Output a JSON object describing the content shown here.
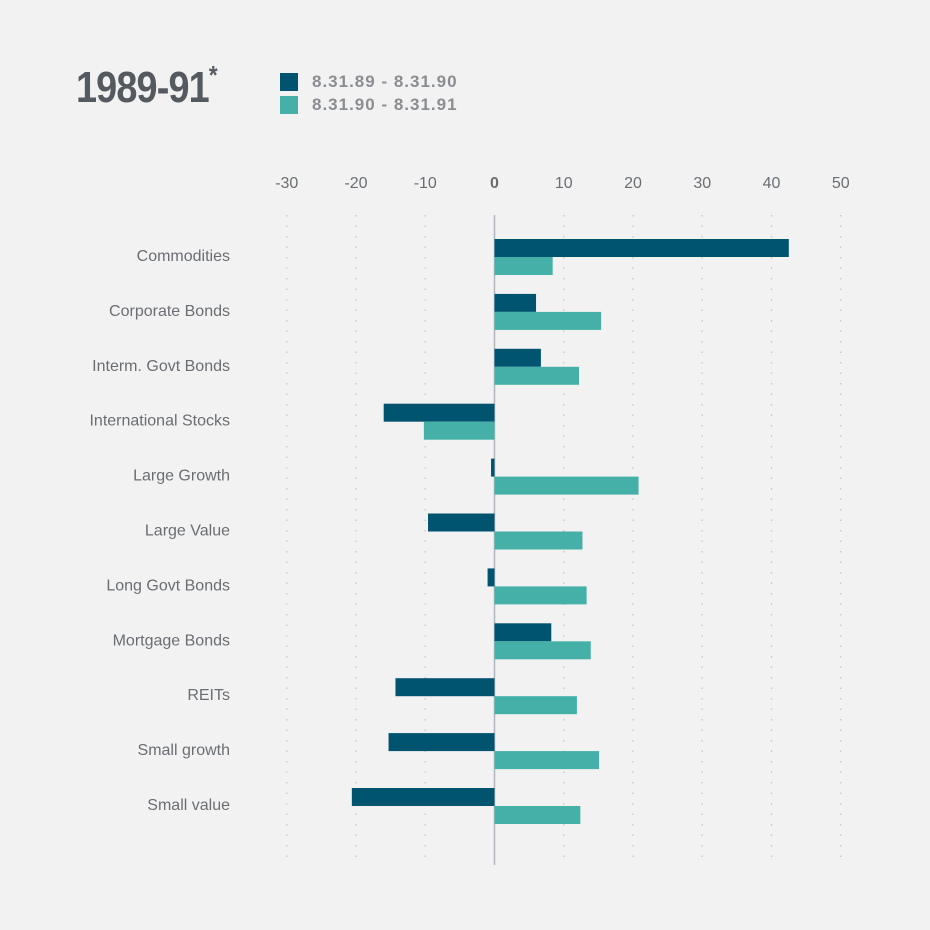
{
  "title": "1989-91",
  "title_mark": "*",
  "colors": {
    "series1": "#005470",
    "series2": "#44b0a8",
    "grid": "#c2c2c2",
    "zero": "#b0b6bc",
    "text": "#6a6e73"
  },
  "chart_data": {
    "type": "bar",
    "orientation": "horizontal",
    "title": "1989-91*",
    "categories": [
      "Commodities",
      "Corporate Bonds",
      "Interm. Govt Bonds",
      "International Stocks",
      "Large Growth",
      "Large Value",
      "Long Govt Bonds",
      "Mortgage Bonds",
      "REITs",
      "Small growth",
      "Small value"
    ],
    "series": [
      {
        "name": "8.31.89 - 8.31.90",
        "color": "#005470",
        "values": [
          42.5,
          6.0,
          6.7,
          -16.0,
          -0.5,
          -9.6,
          -1.0,
          8.2,
          -14.3,
          -15.3,
          -20.6
        ]
      },
      {
        "name": "8.31.90 - 8.31.91",
        "color": "#44b0a8",
        "values": [
          8.4,
          15.4,
          12.2,
          -10.2,
          20.8,
          12.7,
          13.3,
          13.9,
          11.9,
          15.1,
          12.4
        ]
      }
    ],
    "xlim": [
      -30,
      50
    ],
    "xticks": [
      "-30",
      "-20",
      "-10",
      "0",
      "10",
      "20",
      "30",
      "40",
      "50"
    ],
    "xaxis_position": "top",
    "grid": true,
    "legend_position": "top"
  }
}
